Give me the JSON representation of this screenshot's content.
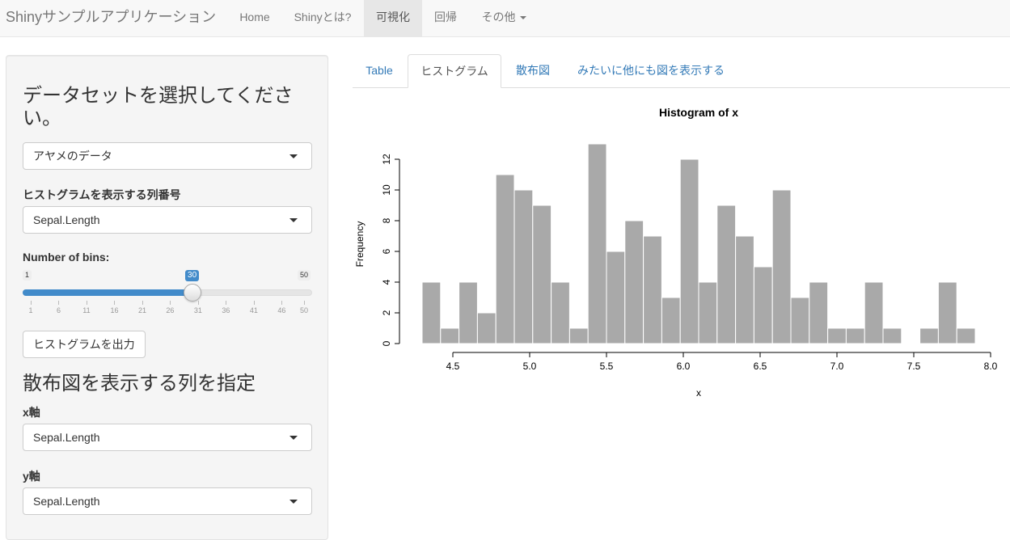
{
  "navbar": {
    "brand": "Shinyサンプルアプリケーション",
    "items": [
      "Home",
      "Shinyとは?",
      "可視化",
      "回帰",
      "その他"
    ],
    "active_index": 2
  },
  "sidebar": {
    "dataset_heading": "データセットを選択してください。",
    "dataset_select": "アヤメのデータ",
    "hist_col_label": "ヒストグラムを表示する列番号",
    "hist_col_select": "Sepal.Length",
    "bins": {
      "label": "Number of bins:",
      "min": "1",
      "max": "50",
      "value": "30",
      "value_num": 30,
      "grid": [
        "1",
        "6",
        "11",
        "16",
        "21",
        "26",
        "31",
        "36",
        "41",
        "46",
        "50"
      ]
    },
    "hist_button": "ヒストグラムを出力",
    "scatter_heading": "散布図を表示する列を指定",
    "x_label": "x軸",
    "x_select": "Sepal.Length",
    "y_label": "y軸",
    "y_select": "Sepal.Length"
  },
  "tabs": [
    "Table",
    "ヒストグラム",
    "散布図",
    "みたいに他にも図を表示する"
  ],
  "active_tab": 1,
  "colors": {
    "accent": "#428bca",
    "bar_fill": "#a9a9a9",
    "link": "#337ab7"
  },
  "chart_data": {
    "type": "bar",
    "title": "Histogram of x",
    "xlabel": "x",
    "ylabel": "Frequency",
    "xlim": [
      4.3,
      7.9
    ],
    "ylim": [
      0,
      13
    ],
    "bin_width": 0.12,
    "bin_start": 4.3,
    "values": [
      4,
      1,
      4,
      2,
      11,
      10,
      9,
      4,
      1,
      13,
      6,
      8,
      7,
      3,
      12,
      4,
      9,
      7,
      5,
      10,
      3,
      4,
      1,
      1,
      4,
      1,
      0,
      1,
      4,
      1
    ],
    "x_ticks": [
      "4.5",
      "5.0",
      "5.5",
      "6.0",
      "6.5",
      "7.0",
      "7.5",
      "8.0"
    ],
    "y_ticks": [
      "0",
      "2",
      "4",
      "6",
      "8",
      "10",
      "12"
    ]
  }
}
